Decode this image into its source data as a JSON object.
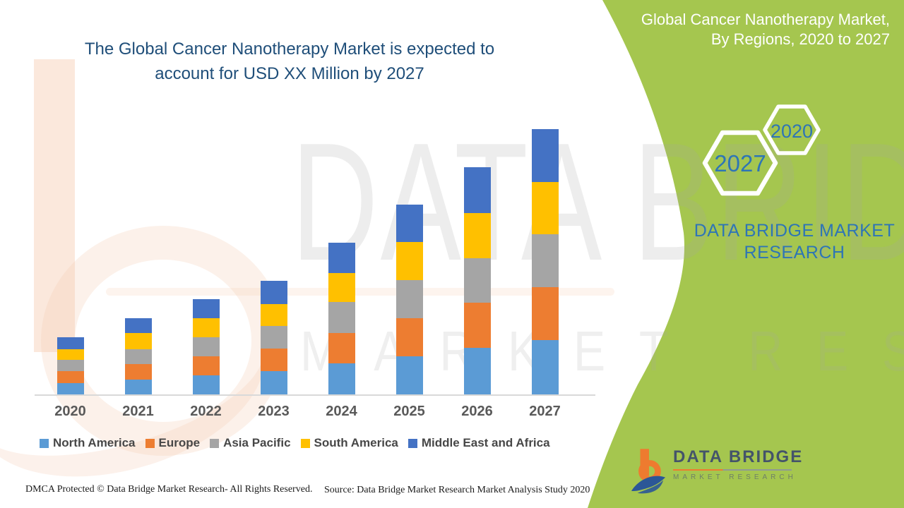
{
  "left_panel": {
    "title_line1": "The Global Cancer Nanotherapy Market is expected to",
    "title_line2": "account for USD XX Million by 2027",
    "footer_left": "DMCA Protected © Data Bridge Market Research- All Rights Reserved.",
    "footer_right": "Source: Data Bridge Market Research Market Analysis Study 2020"
  },
  "right_panel": {
    "title_line1": "Global Cancer Nanotherapy Market,",
    "title_line2": "By Regions, 2020 to 2027",
    "hexagon_front_year": "2027",
    "hexagon_back_year": "2020",
    "brand_line1": "DATA BRIDGE MARKET",
    "brand_line2": "RESEARCH",
    "logo_name": "DATA BRIDGE",
    "logo_tagline": "MARKET RESEARCH"
  },
  "watermark": {
    "line1": "DATA BRIDGE",
    "line2": "MARKET RESEARCH"
  },
  "colors": {
    "green_panel": "#A5C64F",
    "headline": "#1F4E79",
    "brand_blue": "#2E75B6",
    "axis_label": "#595959",
    "legend_text": "#474747",
    "axis_line": "#D9D9D9",
    "watermark_peach": "#F6CBB2",
    "logo_orange": "#EE7B2F",
    "logo_blue": "#2B5797",
    "logo_name": "#44546A"
  },
  "chart_data": {
    "type": "bar",
    "stacked": true,
    "title": "",
    "xlabel": "",
    "ylabel": "",
    "grid": false,
    "legend_position": "bottom",
    "note": "No y-axis is shown; values are relative units estimated from bar heights (market sized as USD XX Million).",
    "categories": [
      "2020",
      "2021",
      "2022",
      "2023",
      "2024",
      "2025",
      "2026",
      "2027"
    ],
    "series": [
      {
        "name": "North America",
        "color": "#5B9BD5",
        "values": [
          16,
          21,
          27,
          33,
          44,
          54,
          66,
          77
        ]
      },
      {
        "name": "Europe",
        "color": "#ED7D31",
        "values": [
          17,
          22,
          27,
          32,
          43,
          54,
          64,
          75
        ]
      },
      {
        "name": "Asia Pacific",
        "color": "#A5A5A5",
        "values": [
          16,
          21,
          27,
          32,
          44,
          54,
          63,
          75
        ]
      },
      {
        "name": "South America",
        "color": "#FFC000",
        "values": [
          15,
          23,
          27,
          31,
          41,
          54,
          64,
          74
        ]
      },
      {
        "name": "Middle East and Africa",
        "color": "#4472C4",
        "values": [
          17,
          21,
          27,
          33,
          43,
          53,
          65,
          75
        ]
      }
    ],
    "totals": [
      81,
      108,
      135,
      161,
      215,
      269,
      322,
      376
    ]
  }
}
